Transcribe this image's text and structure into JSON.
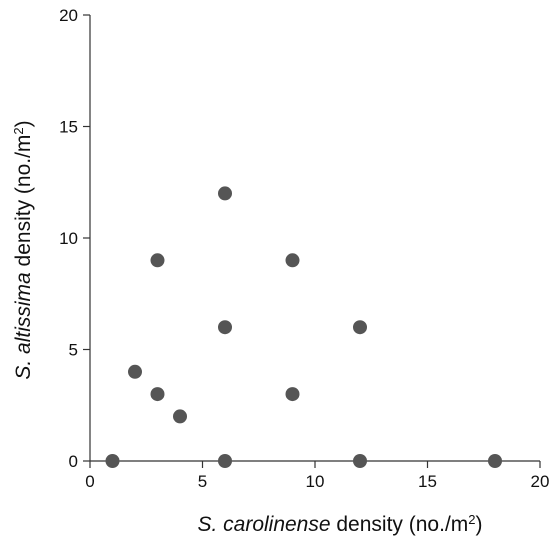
{
  "chart_data": {
    "type": "scatter",
    "title": "",
    "xlabel": {
      "italic": "S. carolinense",
      "rest": " density (no./m",
      "sup": "2",
      "close": ")"
    },
    "ylabel": {
      "italic": "S. altissima",
      "rest": " density (no./m",
      "sup": "2",
      "close": ")"
    },
    "xlim": [
      0,
      20
    ],
    "ylim": [
      0,
      20
    ],
    "xticks": [
      "0",
      "5",
      "10",
      "15",
      "20"
    ],
    "yticks": [
      "0",
      "5",
      "10",
      "15",
      "20"
    ],
    "grid": false,
    "point_color": "#555555",
    "points": [
      {
        "x": 1,
        "y": 0
      },
      {
        "x": 2,
        "y": 4
      },
      {
        "x": 3,
        "y": 3
      },
      {
        "x": 3,
        "y": 9
      },
      {
        "x": 4,
        "y": 2
      },
      {
        "x": 6,
        "y": 0
      },
      {
        "x": 6,
        "y": 6
      },
      {
        "x": 6,
        "y": 12
      },
      {
        "x": 9,
        "y": 3
      },
      {
        "x": 9,
        "y": 9
      },
      {
        "x": 12,
        "y": 0
      },
      {
        "x": 12,
        "y": 6
      },
      {
        "x": 18,
        "y": 0
      }
    ]
  }
}
